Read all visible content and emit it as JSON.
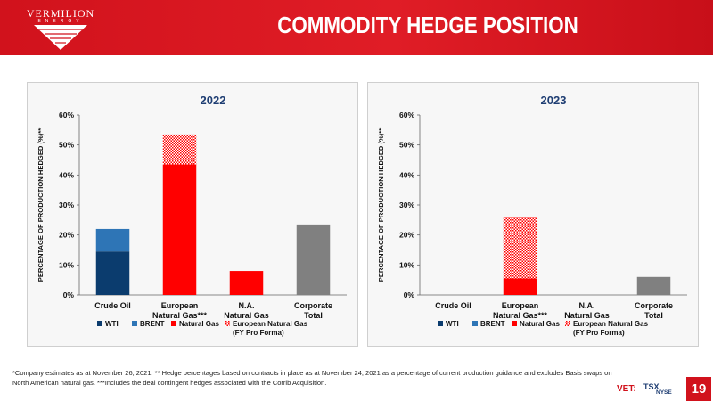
{
  "header": {
    "logo_name": "VERMILION",
    "logo_sub": "ENERGY",
    "title": "COMMODITY HEDGE POSITION"
  },
  "colors": {
    "brand_red": "#d1121c",
    "wti": "#0b3c6e",
    "brent": "#2e75b6",
    "natural_gas": "#ff0000",
    "european_pro_forma": "#f4b9b9",
    "corporate": "#808080"
  },
  "legend": [
    {
      "key": "wti",
      "label": "WTI"
    },
    {
      "key": "brent",
      "label": "BRENT"
    },
    {
      "key": "natural_gas",
      "label": "Natural Gas"
    },
    {
      "key": "pro_forma",
      "label": "European Natural Gas\n(FY Pro Forma)"
    }
  ],
  "chart_data": [
    {
      "type": "bar",
      "stacked": true,
      "title": "2022",
      "ylabel": "PERCENTAGE OF PRODUCTION HEDGED (%)**",
      "ylim": [
        0,
        60
      ],
      "yticks": [
        "0%",
        "10%",
        "20%",
        "30%",
        "40%",
        "50%",
        "60%"
      ],
      "categories": [
        "Crude Oil",
        "European\nNatural Gas***",
        "N.A.\nNatural Gas",
        "Corporate\nTotal"
      ],
      "series": [
        {
          "name": "WTI",
          "values": [
            14.5,
            0,
            0,
            0
          ]
        },
        {
          "name": "BRENT",
          "values": [
            7.5,
            0,
            0,
            0
          ]
        },
        {
          "name": "Natural Gas",
          "values": [
            0,
            43.5,
            8,
            0
          ]
        },
        {
          "name": "European Natural Gas (FY Pro Forma)",
          "values": [
            0,
            10,
            0,
            0
          ]
        },
        {
          "values": [
            0,
            0,
            0,
            23.5
          ]
        }
      ],
      "legend_position": "bottom"
    },
    {
      "type": "bar",
      "stacked": true,
      "title": "2023",
      "ylabel": "PERCENTAGE OF PRODUCTION HEDGED (%)**",
      "ylim": [
        0,
        60
      ],
      "yticks": [
        "0%",
        "10%",
        "20%",
        "30%",
        "40%",
        "50%",
        "60%"
      ],
      "categories": [
        "Crude Oil",
        "European\nNatural Gas***",
        "N.A.\nNatural Gas",
        "Corporate\nTotal"
      ],
      "series": [
        {
          "name": "WTI",
          "values": [
            0,
            0,
            0,
            0
          ]
        },
        {
          "name": "BRENT",
          "values": [
            0,
            0,
            0,
            0
          ]
        },
        {
          "name": "Natural Gas",
          "values": [
            0,
            5.5,
            0,
            0
          ]
        },
        {
          "name": "European Natural Gas (FY Pro Forma)",
          "values": [
            0,
            20.5,
            0,
            0
          ]
        },
        {
          "values": [
            0,
            0,
            0,
            6
          ]
        }
      ],
      "legend_position": "bottom"
    }
  ],
  "footnote": "*Company estimates as at November 26, 2021. ** Hedge percentages based on contracts in place as at November 24, 2021 as a percentage of current production guidance and excludes Basis swaps on North American natural gas. ***Includes the deal contingent hedges associated with the Corrib Acquisition.",
  "ticker": {
    "vet": "VET:",
    "tsx": "TSX",
    "nyse": "NYSE"
  },
  "page_number": "19"
}
